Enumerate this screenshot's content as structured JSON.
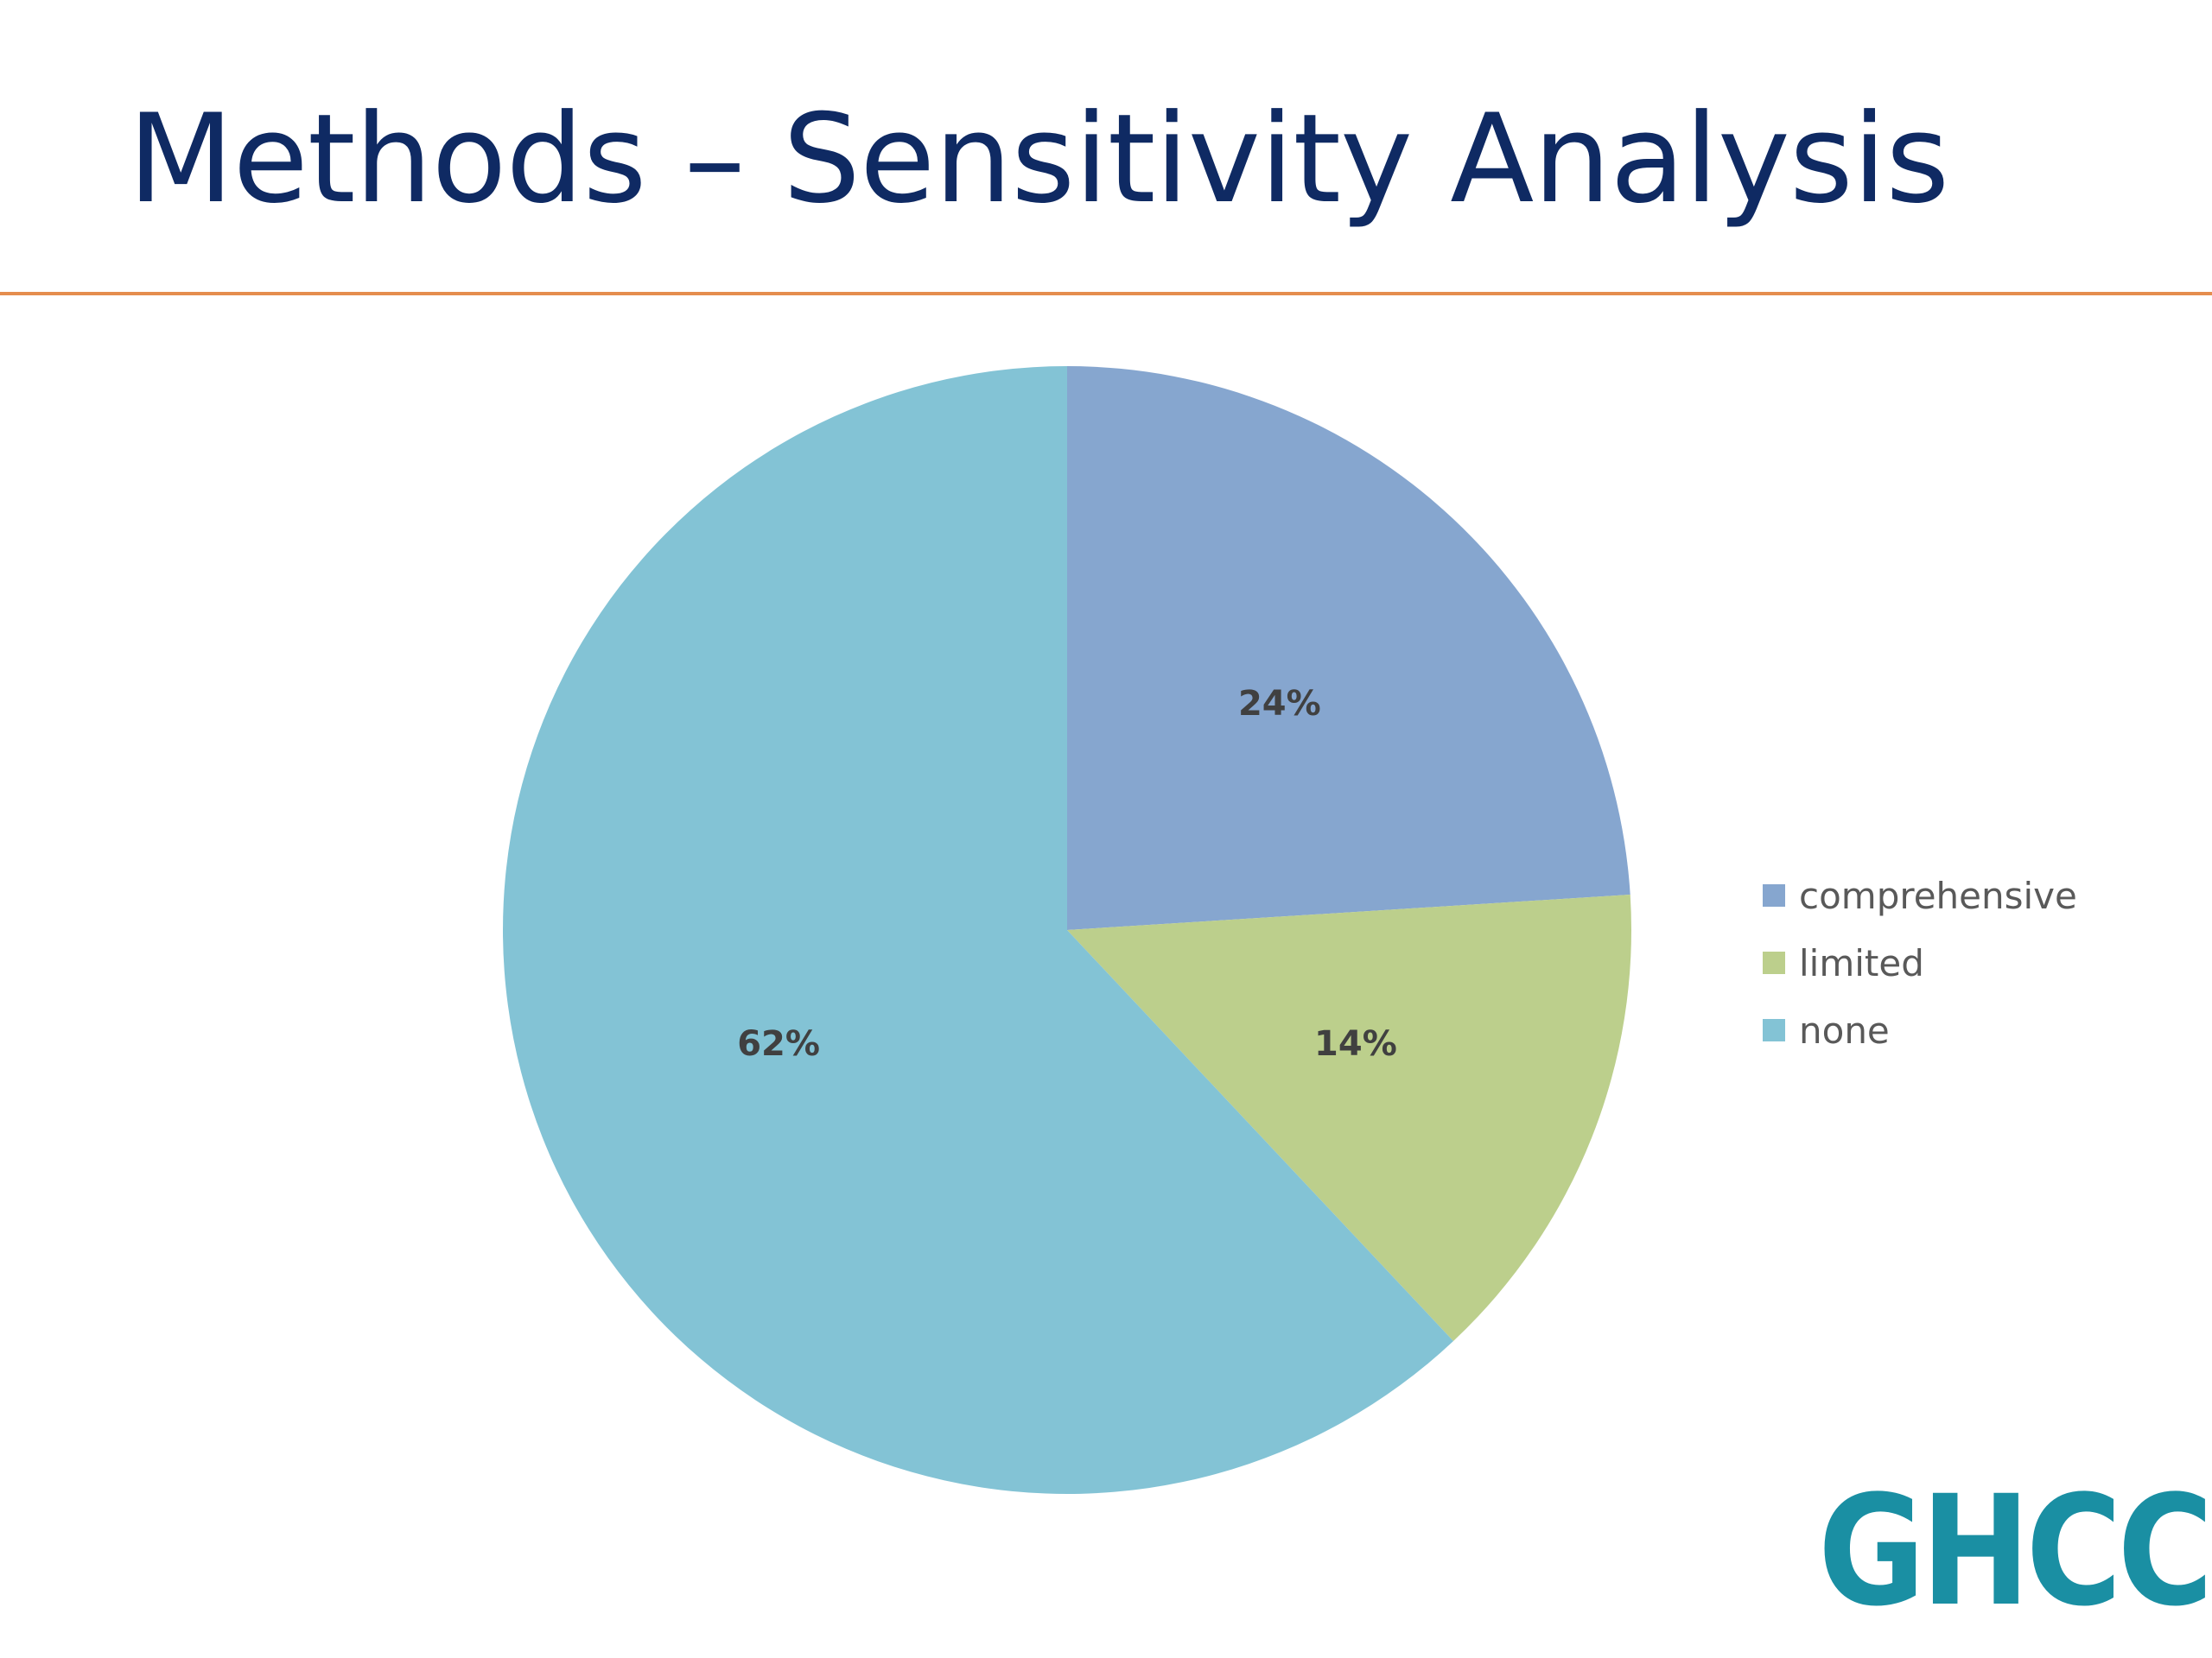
{
  "slide": {
    "title": "Methods – Sensitivity Analysis",
    "logo_text": "GHCC"
  },
  "colors": {
    "title": "#0f2a63",
    "rule": "#e58d4e",
    "comprehensive": "#86a6cf",
    "limited": "#bccf8c",
    "none": "#83c3d5",
    "label": "#404040",
    "legend_text": "#595959",
    "logo": "#1a8fa3"
  },
  "chart_data": {
    "type": "pie",
    "title": "",
    "start_angle_deg": 0,
    "direction": "clockwise",
    "slices": [
      {
        "name": "comprehensive",
        "value": 24,
        "label": "24%"
      },
      {
        "name": "limited",
        "value": 14,
        "label": "14%"
      },
      {
        "name": "none",
        "value": 62,
        "label": "62%"
      }
    ],
    "legend": {
      "placement": "right",
      "entries": [
        "comprehensive",
        "limited",
        "none"
      ]
    }
  }
}
